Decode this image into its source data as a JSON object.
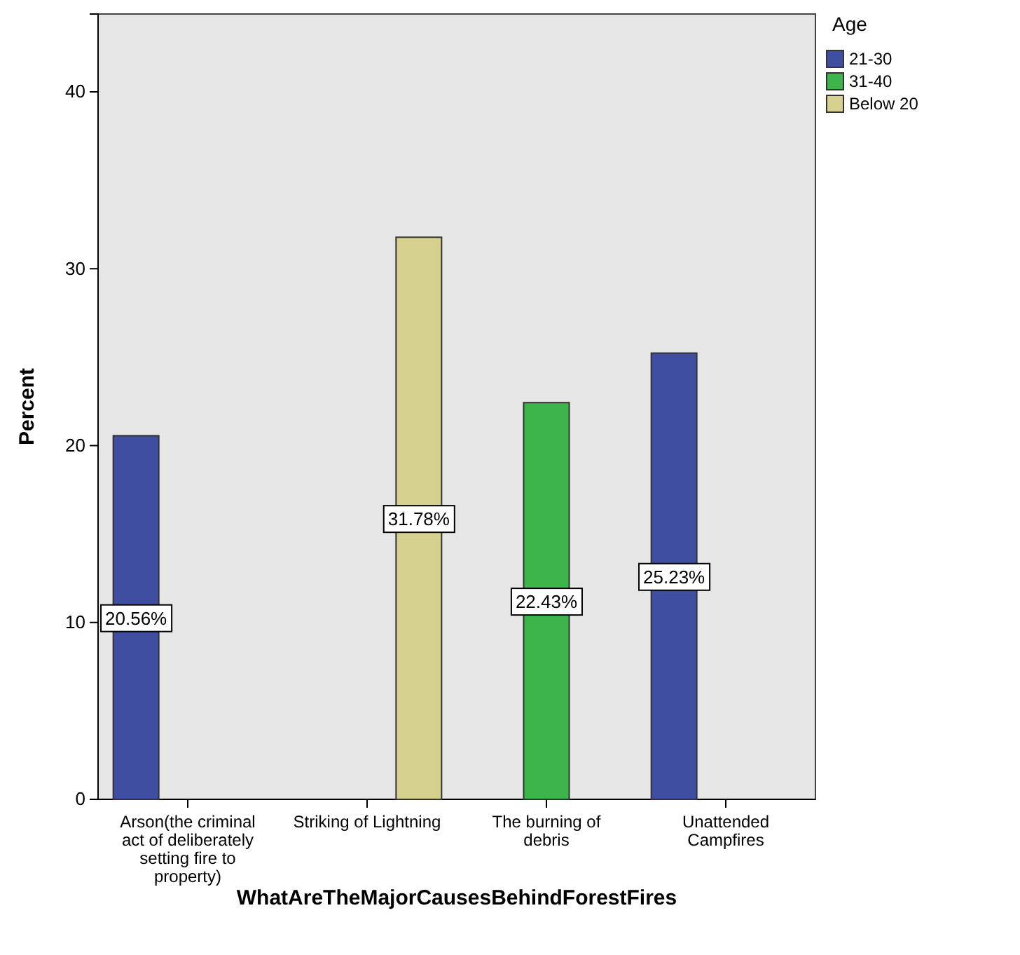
{
  "chart_data": {
    "type": "bar",
    "xlabel": "WhatAreTheMajorCausesBehindForestFires",
    "ylabel": "Percent",
    "legend_title": "Age",
    "categories": [
      "Arson(the criminal act of deliberately setting fire to property)",
      "Striking of Lightning",
      "The burning of debris",
      "Unattended Campfires"
    ],
    "series": [
      {
        "name": "21-30",
        "color": "#3f4ea0",
        "values": [
          20.56,
          null,
          null,
          25.23
        ],
        "value_labels": [
          "20.56%",
          null,
          null,
          "25.23%"
        ]
      },
      {
        "name": "31-40",
        "color": "#3db54b",
        "values": [
          null,
          null,
          22.43,
          null
        ],
        "value_labels": [
          null,
          null,
          "22.43%",
          null
        ]
      },
      {
        "name": "Below 20",
        "color": "#d7d190",
        "values": [
          null,
          31.78,
          null,
          null
        ],
        "value_labels": [
          null,
          "31.78%",
          null,
          null
        ]
      }
    ],
    "ylim": [
      0,
      44.4
    ],
    "yticks": [
      0,
      10,
      20,
      30,
      40
    ],
    "grid": false,
    "legend": "top right"
  }
}
